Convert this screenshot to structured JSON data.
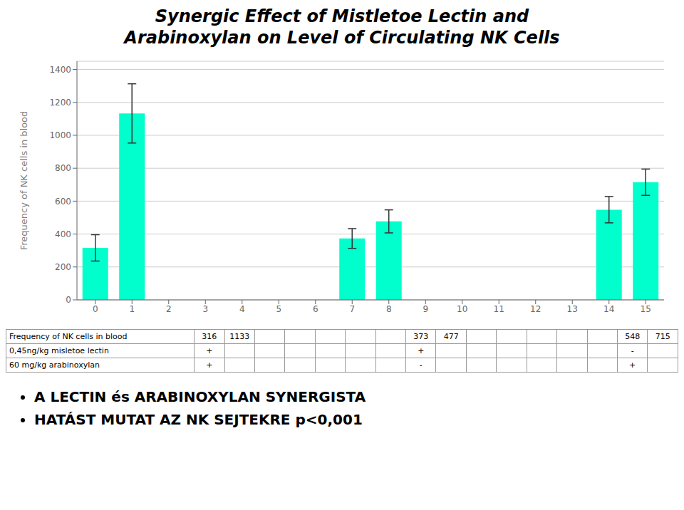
{
  "chart_data": {
    "type": "bar",
    "title": [
      "Synergic Effect of Mistletoe Lectin and",
      "Arabinoxylan on Level of Circulating NK Cells"
    ],
    "y_label": "Frequency of NK cells in blood",
    "categories": [
      "0",
      "1",
      "2",
      "3",
      "4",
      "5",
      "6",
      "7",
      "8",
      "9",
      "10",
      "11",
      "12",
      "13",
      "14",
      "15"
    ],
    "values": [
      316,
      1133,
      null,
      null,
      null,
      null,
      null,
      373,
      477,
      null,
      null,
      null,
      null,
      null,
      548,
      715
    ],
    "errors": [
      80,
      180,
      null,
      null,
      null,
      null,
      null,
      60,
      70,
      null,
      null,
      null,
      null,
      null,
      80,
      80
    ],
    "color": "#00FFCC",
    "ylim": [
      0,
      1450
    ],
    "yticks": [
      0,
      200,
      400,
      600,
      800,
      1000,
      1200,
      1400
    ],
    "grid": true,
    "table": {
      "row_labels": [
        "Frequency of NK cells in blood",
        "0,45ng/kg misletoe lectin",
        "60 mg/kg arabinoxylan"
      ],
      "rows": [
        [
          316,
          1133,
          null,
          null,
          null,
          null,
          null,
          373,
          477,
          null,
          null,
          null,
          null,
          null,
          548,
          715
        ],
        [
          "+",
          null,
          null,
          null,
          null,
          null,
          null,
          "+",
          null,
          null,
          null,
          null,
          null,
          null,
          "-",
          null
        ],
        [
          "+",
          null,
          null,
          null,
          null,
          null,
          null,
          "-",
          null,
          null,
          null,
          null,
          null,
          null,
          "+",
          null
        ]
      ]
    },
    "annotations": [
      "A LECTIN és ARABINOXYLAN SYNERGISTA",
      "HATÁST MUTAT AZ NK SEJTEKRE p<0,001"
    ]
  }
}
